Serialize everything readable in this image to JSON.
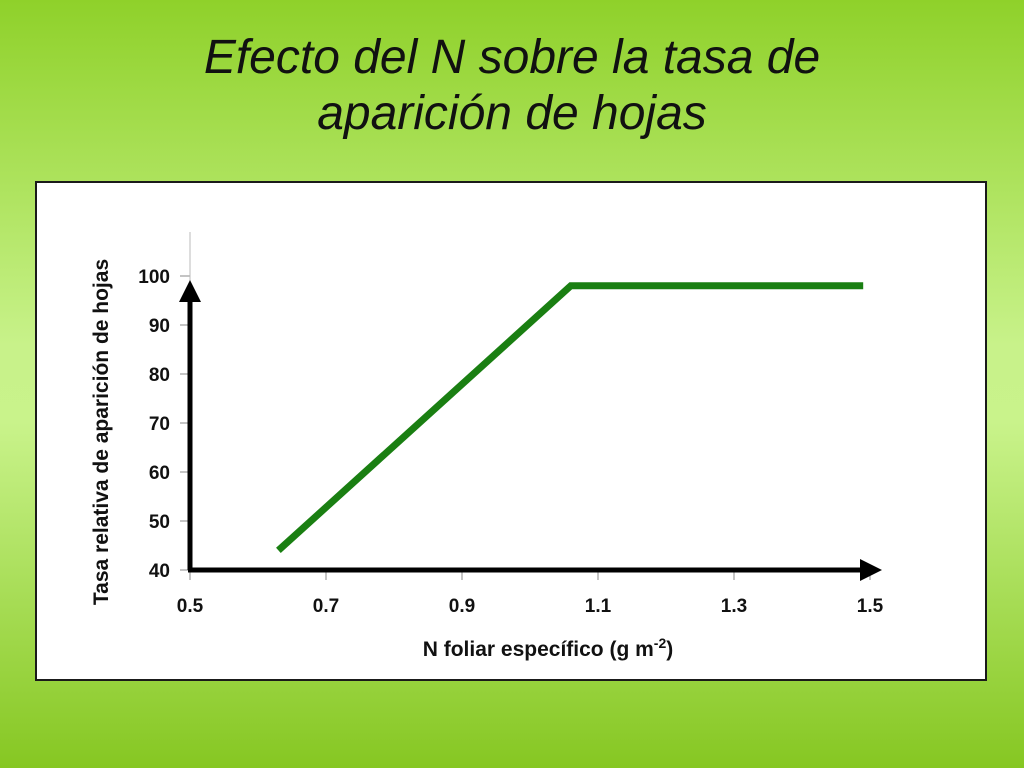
{
  "slide": {
    "title_line1": "Efecto del N sobre la tasa de",
    "title_line2": "aparición de hojas"
  },
  "chart_data": {
    "type": "line",
    "title": "",
    "xlabel_main": "N foliar específico (g m",
    "xlabel_sup": "-2",
    "xlabel_end": ")",
    "ylabel": "Tasa relativa de aparición de hojas",
    "xlim": [
      0.5,
      1.5
    ],
    "ylim": [
      40,
      100
    ],
    "x_ticks": [
      "0.5",
      "0.7",
      "0.9",
      "1.1",
      "1.3",
      "1.5"
    ],
    "y_ticks": [
      "40",
      "50",
      "60",
      "70",
      "80",
      "90",
      "100"
    ],
    "grid": false,
    "series": [
      {
        "color": "#1a7f12",
        "points": [
          [
            0.63,
            44
          ],
          [
            1.06,
            98
          ],
          [
            1.49,
            98
          ]
        ]
      }
    ]
  }
}
